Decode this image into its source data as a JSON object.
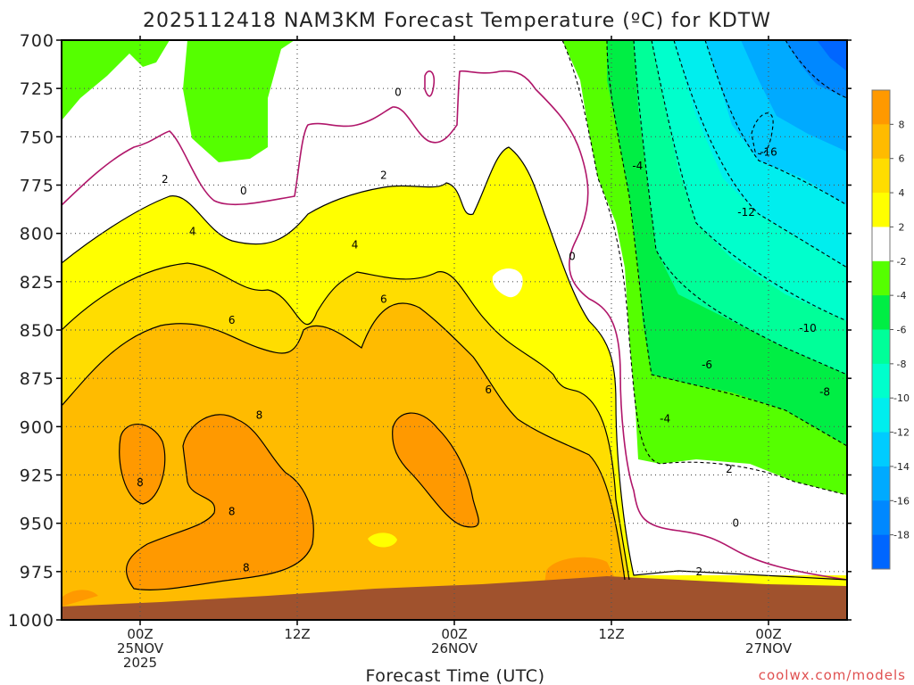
{
  "chart_data": {
    "type": "area",
    "title": "2025112418 NAM3KM Forecast Temperature (ºC) for KDTW",
    "xlabel": "Forecast Time (UTC)",
    "ylabel": "",
    "credit": "coolwx.com/models",
    "y_ticks": [
      "700",
      "725",
      "750",
      "775",
      "800",
      "825",
      "850",
      "875",
      "900",
      "925",
      "950",
      "975",
      "1000"
    ],
    "x_ticks": [
      {
        "l1": "00Z",
        "l2": "25NOV",
        "l3": "2025",
        "hour": 6
      },
      {
        "l1": "12Z",
        "l2": "",
        "l3": "",
        "hour": 18
      },
      {
        "l1": "00Z",
        "l2": "26NOV",
        "l3": "",
        "hour": 30
      },
      {
        "l1": "12Z",
        "l2": "",
        "l3": "",
        "hour": 42
      },
      {
        "l1": "00Z",
        "l2": "27NOV",
        "l3": "",
        "hour": 54
      }
    ],
    "xlim": [
      0,
      60
    ],
    "ylim": [
      1000,
      700
    ],
    "colorbar": {
      "labels": [
        "8",
        "6",
        "4",
        "2",
        "-2",
        "-4",
        "-6",
        "-8",
        "-10",
        "-12",
        "-14",
        "-16",
        "-18"
      ],
      "colors": [
        "#ff9900",
        "#ffbb00",
        "#ffdd00",
        "#ffff00",
        "#ffffff",
        "#55ff00",
        "#00ee44",
        "#00ff99",
        "#00ffcc",
        "#00eeee",
        "#00ccff",
        "#00aaff",
        "#0088ff",
        "#0066ff"
      ]
    },
    "contour_labels": [
      {
        "text": "0",
        "hour": 25.7,
        "p": 727
      },
      {
        "text": "0",
        "hour": 13.9,
        "p": 778
      },
      {
        "text": "0",
        "hour": 39.0,
        "p": 812
      },
      {
        "text": "0",
        "hour": 51.5,
        "p": 950
      },
      {
        "text": "2",
        "hour": 7.9,
        "p": 772
      },
      {
        "text": "2",
        "hour": 24.6,
        "p": 770
      },
      {
        "text": "2",
        "hour": 51.0,
        "p": 922
      },
      {
        "text": "2",
        "hour": 48.7,
        "p": 975
      },
      {
        "text": "4",
        "hour": 10.0,
        "p": 799
      },
      {
        "text": "4",
        "hour": 22.4,
        "p": 806
      },
      {
        "text": "6",
        "hour": 13.0,
        "p": 845
      },
      {
        "text": "6",
        "hour": 24.6,
        "p": 834
      },
      {
        "text": "6",
        "hour": 32.6,
        "p": 881
      },
      {
        "text": "8",
        "hour": 15.1,
        "p": 894
      },
      {
        "text": "8",
        "hour": 6.0,
        "p": 929
      },
      {
        "text": "8",
        "hour": 13.0,
        "p": 944
      },
      {
        "text": "8",
        "hour": 14.1,
        "p": 973
      },
      {
        "text": "-4",
        "hour": 44.0,
        "p": 765
      },
      {
        "text": "-16",
        "hour": 54.0,
        "p": 758
      },
      {
        "text": "-12",
        "hour": 52.3,
        "p": 789
      },
      {
        "text": "-10",
        "hour": 57.0,
        "p": 849
      },
      {
        "text": "-6",
        "hour": 49.3,
        "p": 868
      },
      {
        "text": "-8",
        "hour": 58.3,
        "p": 882
      },
      {
        "text": "-4",
        "hour": 46.1,
        "p": 896
      }
    ]
  }
}
